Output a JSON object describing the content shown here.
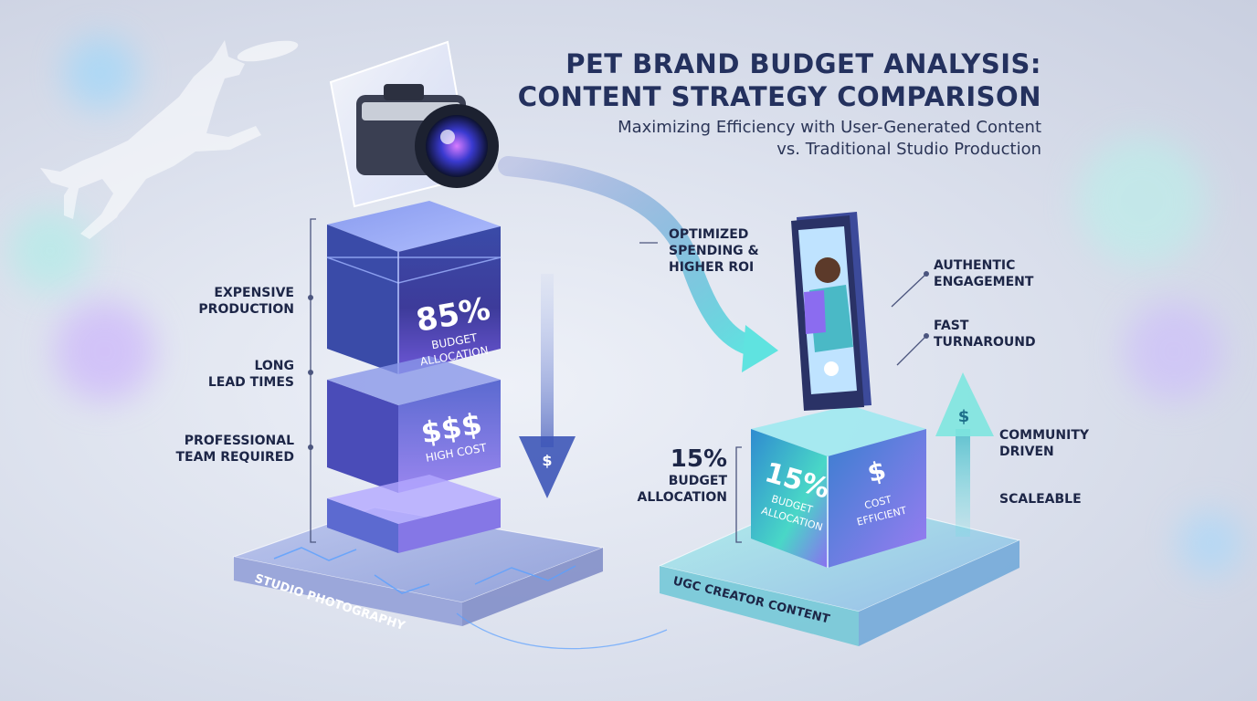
{
  "title": {
    "line1": "PET BRAND BUDGET ANALYSIS:",
    "line2": "CONTENT STRATEGY COMPARISON"
  },
  "subtitle": {
    "line1": "Maximizing Efficiency with User-Generated Content",
    "line2": "vs. Traditional Studio Production"
  },
  "studio": {
    "platform_label": "STUDIO PHOTOGRAPHY",
    "percent": "85%",
    "percent_caption_1": "BUDGET",
    "percent_caption_2": "ALLOCATION",
    "cost_symbol": "$$$",
    "cost_caption": "HIGH COST",
    "features": [
      {
        "line1": "EXPENSIVE",
        "line2": "PRODUCTION"
      },
      {
        "line1": "LONG",
        "line2": "LEAD TIMES"
      },
      {
        "line1": "PROFESSIONAL",
        "line2": "TEAM REQUIRED"
      }
    ],
    "share": 0.85
  },
  "flow": {
    "line1": "OPTIMIZED",
    "line2": "SPENDING &",
    "line3": "HIGHER ROI",
    "down_symbol": "$",
    "up_symbol": "$"
  },
  "ugc": {
    "platform_label": "UGC CREATOR CONTENT",
    "side_percent": "15%",
    "side_caption_1": "BUDGET",
    "side_caption_2": "ALLOCATION",
    "cube_percent": "15%",
    "cube_caption_1": "BUDGET",
    "cube_caption_2": "ALLOCATION",
    "cost_symbol": "$",
    "cost_caption_1": "COST",
    "cost_caption_2": "EFFICIENT",
    "features": [
      {
        "line1": "AUTHENTIC",
        "line2": "ENGAGEMENT"
      },
      {
        "line1": "FAST",
        "line2": "TURNAROUND"
      },
      {
        "line1": "COMMUNITY",
        "line2": "DRIVEN"
      },
      {
        "line1": "SCALEABLE",
        "line2": ""
      }
    ],
    "share": 0.15
  },
  "icons": [
    "camera-icon",
    "smartphone-icon",
    "dog-silhouette-icon",
    "frisbee-icon",
    "dollar-icon"
  ],
  "colors": {
    "studio_cube": "#2c3a8c",
    "ugc_cube": "#4fd6c9",
    "title": "#24315e",
    "accent_cyan": "#5fe3e0",
    "accent_purple": "#8b6cf0"
  }
}
